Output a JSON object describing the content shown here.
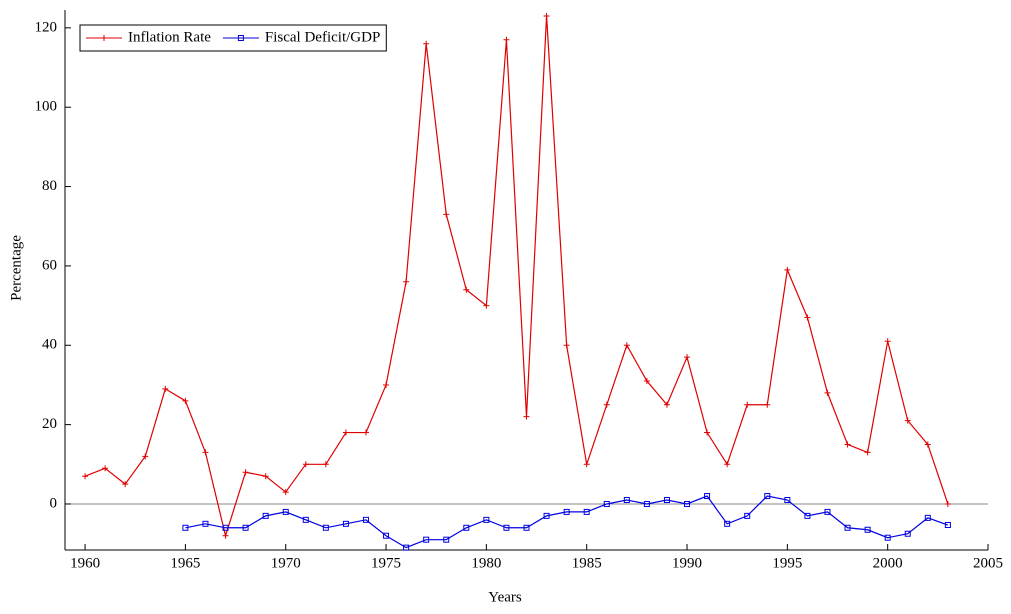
{
  "chart_data": {
    "type": "line",
    "x_label": "Years",
    "y_label": "Percentage",
    "x": [
      1960,
      1961,
      1962,
      1963,
      1964,
      1965,
      1966,
      1967,
      1968,
      1969,
      1970,
      1971,
      1972,
      1973,
      1974,
      1975,
      1976,
      1977,
      1978,
      1979,
      1980,
      1981,
      1982,
      1983,
      1984,
      1985,
      1986,
      1987,
      1988,
      1989,
      1990,
      1991,
      1992,
      1993,
      1994,
      1995,
      1996,
      1997,
      1998,
      1999,
      2000,
      2001,
      2002,
      2003
    ],
    "series": [
      {
        "name": "Inflation Rate",
        "color": "#e00000",
        "marker": "plus",
        "values": [
          7,
          9,
          5,
          12,
          29,
          26,
          13,
          -8,
          8,
          7,
          3,
          10,
          10,
          18,
          18,
          30,
          56,
          116,
          73,
          54,
          50,
          117,
          22,
          123,
          40,
          10,
          25,
          40,
          31,
          25,
          37,
          18,
          10,
          25,
          25,
          59,
          47,
          28,
          15,
          13,
          41,
          21,
          15,
          0
        ]
      },
      {
        "name": "Fiscal Deficit/GDP",
        "color": "#0000e0",
        "marker": "square",
        "values": [
          null,
          null,
          null,
          null,
          null,
          -6,
          -5,
          -6,
          -6,
          -3,
          -2,
          -4,
          -6,
          -5,
          -4,
          -8,
          -11,
          -9,
          -9,
          -6,
          -4,
          -6,
          -6,
          -3,
          -2,
          -2,
          0,
          1,
          0,
          1,
          0,
          2,
          -5,
          -3,
          2,
          1,
          -3,
          -2,
          -6,
          -6.5,
          -8.5,
          -7.5,
          -3.5,
          -5.3
        ]
      }
    ],
    "xlim": [
      1959,
      2005
    ],
    "ylim": [
      -11.6,
      124.5
    ],
    "xticks": [
      1960,
      1965,
      1970,
      1975,
      1980,
      1985,
      1990,
      1995,
      2000,
      2005
    ],
    "yticks": [
      0,
      20,
      40,
      60,
      80,
      100,
      120
    ],
    "zero_line": true,
    "legend": "top-left"
  }
}
